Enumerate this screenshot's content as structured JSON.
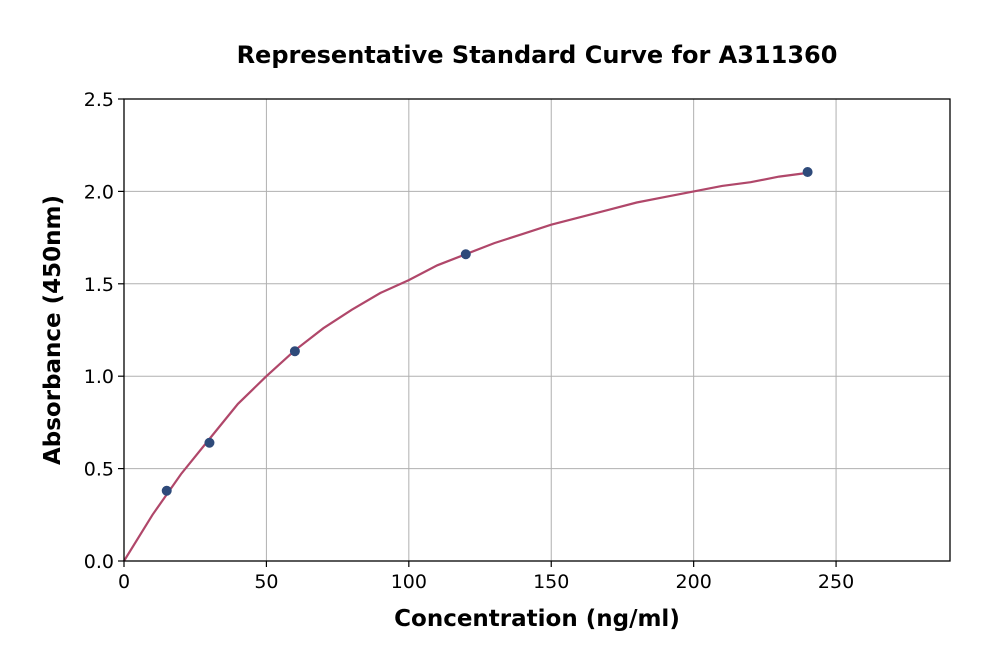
{
  "chart_data": {
    "type": "scatter",
    "title": "Representative Standard Curve for A311360",
    "xlabel": "Concentration (ng/ml)",
    "ylabel": "Absorbance (450nm)",
    "xlim": [
      0,
      290
    ],
    "ylim": [
      0,
      2.5
    ],
    "xticks": [
      "0",
      "50",
      "100",
      "150",
      "200",
      "250"
    ],
    "yticks": [
      "0.0",
      "0.5",
      "1.0",
      "1.5",
      "2.0",
      "2.5"
    ],
    "grid": true,
    "points": {
      "x": [
        15,
        30,
        60,
        120,
        240
      ],
      "y": [
        0.38,
        0.64,
        1.135,
        1.66,
        2.105
      ]
    },
    "fit_curve": {
      "x": [
        0,
        10,
        20,
        30,
        40,
        50,
        60,
        70,
        80,
        90,
        100,
        110,
        120,
        130,
        140,
        150,
        160,
        170,
        180,
        190,
        200,
        210,
        220,
        230,
        240
      ],
      "y": [
        0.0,
        0.25,
        0.47,
        0.66,
        0.85,
        1.0,
        1.14,
        1.26,
        1.36,
        1.45,
        1.52,
        1.6,
        1.66,
        1.72,
        1.77,
        1.82,
        1.86,
        1.9,
        1.94,
        1.97,
        2.0,
        2.03,
        2.05,
        2.08,
        2.1
      ]
    },
    "colors": {
      "point": "#2e4a7a",
      "curve": "#b0476a",
      "grid": "#b0b0b0"
    }
  }
}
